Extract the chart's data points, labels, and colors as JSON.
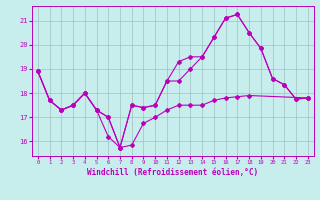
{
  "xlabel": "Windchill (Refroidissement éolien,°C)",
  "bg_color": "#c8eded",
  "line_color": "#bb00bb",
  "grid_color": "#a0c0c0",
  "xlim": [
    -0.5,
    23.5
  ],
  "ylim": [
    15.4,
    21.6
  ],
  "xticks": [
    0,
    1,
    2,
    3,
    4,
    5,
    6,
    7,
    8,
    9,
    10,
    11,
    12,
    13,
    14,
    15,
    16,
    17,
    18,
    19,
    20,
    21,
    22,
    23
  ],
  "yticks": [
    16,
    17,
    18,
    19,
    20,
    21
  ],
  "line1_x": [
    0,
    1,
    2,
    3,
    4,
    5,
    6,
    7,
    8,
    9,
    10,
    11,
    12,
    13,
    14,
    15,
    16,
    17,
    18,
    19,
    20,
    21,
    22,
    23
  ],
  "line1_y": [
    18.9,
    17.7,
    17.3,
    17.5,
    18.0,
    17.3,
    17.0,
    15.75,
    17.5,
    17.4,
    17.5,
    18.5,
    19.3,
    19.5,
    19.5,
    20.3,
    21.1,
    21.25,
    20.5,
    19.85,
    18.6,
    18.35,
    17.75,
    17.8
  ],
  "line2_x": [
    0,
    1,
    2,
    3,
    4,
    5,
    6,
    7,
    8,
    9,
    10,
    11,
    12,
    13,
    14,
    15,
    16,
    17,
    18,
    19,
    20,
    21,
    22,
    23
  ],
  "line2_y": [
    18.9,
    17.7,
    17.3,
    17.5,
    18.0,
    17.3,
    17.0,
    15.75,
    17.5,
    17.4,
    17.5,
    18.5,
    18.5,
    19.0,
    19.5,
    20.3,
    21.1,
    21.25,
    20.5,
    19.85,
    18.6,
    18.35,
    17.75,
    17.8
  ],
  "line3_x": [
    0,
    1,
    2,
    3,
    4,
    5,
    6,
    7,
    8,
    9,
    10,
    11,
    12,
    13,
    14,
    15,
    16,
    17,
    18,
    23
  ],
  "line3_y": [
    18.9,
    17.7,
    17.3,
    17.5,
    18.0,
    17.3,
    16.2,
    15.75,
    15.85,
    16.75,
    17.0,
    17.3,
    17.5,
    17.5,
    17.5,
    17.7,
    17.8,
    17.85,
    17.9,
    17.8
  ]
}
